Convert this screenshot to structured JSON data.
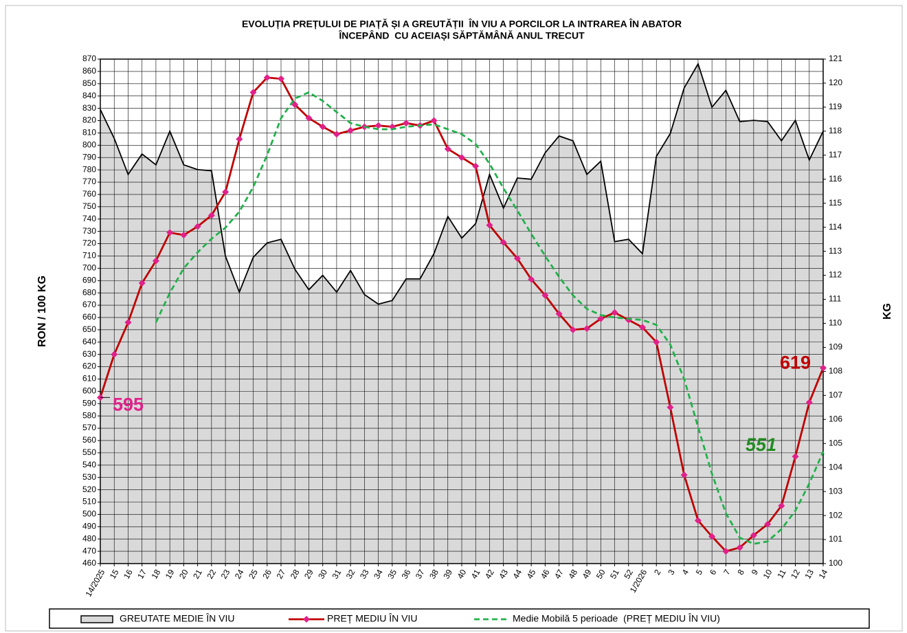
{
  "chart_data": {
    "type": "line",
    "title": "EVOLUȚIA PREȚULUI DE PIAȚĂ ȘI A GREUTĂȚII  ÎN VIU A PORCILOR LA INTRAREA ÎN ABATOR",
    "subtitle": "ÎNCEPÂND  CU ACEIAȘI SĂPTĂMÂNĂ ANUL TRECUT",
    "y_label": "RON / 100 KG",
    "y2_label": "KG",
    "categories": [
      "14/2025",
      "15",
      "16",
      "17",
      "18",
      "19",
      "20",
      "21",
      "22",
      "23",
      "24",
      "25",
      "26",
      "27",
      "28",
      "29",
      "30",
      "31",
      "32",
      "33",
      "34",
      "35",
      "36",
      "37",
      "38",
      "39",
      "40",
      "41",
      "42",
      "43",
      "44",
      "45",
      "46",
      "47",
      "48",
      "49",
      "50",
      "51",
      "52",
      "1/2026",
      "2",
      "3",
      "4",
      "5",
      "6",
      "7",
      "8",
      "9",
      "10",
      "11",
      "12",
      "13",
      "14"
    ],
    "series": [
      {
        "name": "GREUTATE MEDIE ÎN VIU",
        "type": "area",
        "axis": "y2",
        "color": "#000000",
        "fill": "#d9d9d9",
        "values": [
          118.9,
          117.7,
          116.2,
          117.05,
          116.6,
          118.0,
          116.6,
          116.4,
          116.35,
          112.8,
          111.3,
          112.75,
          113.35,
          113.5,
          112.25,
          111.4,
          112.0,
          111.3,
          112.2,
          111.2,
          110.8,
          110.95,
          111.85,
          111.85,
          112.9,
          114.45,
          113.55,
          114.15,
          116.2,
          114.8,
          116.05,
          116.0,
          117.1,
          117.8,
          117.6,
          116.2,
          116.75,
          113.4,
          113.5,
          112.9,
          116.95,
          117.9,
          119.8,
          120.8,
          119.0,
          119.7,
          118.4,
          118.45,
          118.4,
          117.6,
          118.45,
          116.8,
          118.0
        ]
      },
      {
        "name": "PREȚ MEDIU ÎN VIU",
        "type": "line",
        "color": "#c00000",
        "marker_color": "#e0218a",
        "values": [
          595,
          630,
          656,
          688,
          706,
          729,
          727,
          734,
          743,
          762,
          805,
          843,
          855,
          854,
          833,
          822,
          815,
          809,
          812,
          815,
          816,
          815,
          818,
          816,
          820,
          797,
          790,
          783,
          735,
          721,
          708,
          691,
          678,
          663,
          650,
          651,
          659,
          664,
          658,
          652,
          640,
          587,
          532,
          495,
          482,
          470,
          473,
          483,
          492,
          507,
          547,
          591,
          619
        ],
        "value_labels": [
          "595",
          null,
          null,
          null,
          null,
          null,
          null,
          null,
          null,
          null,
          null,
          null,
          null,
          null,
          null,
          null,
          null,
          null,
          null,
          null,
          null,
          null,
          null,
          null,
          null,
          null,
          null,
          null,
          null,
          null,
          null,
          null,
          null,
          null,
          null,
          null,
          null,
          null,
          null,
          null,
          null,
          null,
          null,
          null,
          null,
          null,
          null,
          null,
          null,
          null,
          null,
          null,
          "619"
        ]
      },
      {
        "name": "Medie Mobilă 5 perioade  (PREȚ MEDIU ÎN VIU)",
        "type": "dashed",
        "color": "#22b14c",
        "values": [
          null,
          null,
          null,
          null,
          656,
          680,
          700,
          713,
          724,
          733,
          746,
          766,
          792,
          822,
          838,
          843,
          836,
          827,
          818,
          815,
          813,
          813,
          815,
          816,
          817,
          813,
          809,
          801,
          785,
          765,
          747,
          728,
          710,
          693,
          678,
          667,
          662,
          660,
          659,
          658,
          654,
          638,
          610,
          571,
          533,
          501,
          481,
          476,
          478,
          488,
          503,
          525,
          551
        ],
        "value_labels": [
          null,
          null,
          null,
          null,
          null,
          null,
          null,
          null,
          null,
          null,
          null,
          null,
          null,
          null,
          null,
          null,
          null,
          null,
          null,
          null,
          null,
          null,
          null,
          null,
          null,
          null,
          null,
          null,
          null,
          null,
          null,
          null,
          null,
          null,
          null,
          null,
          null,
          null,
          null,
          null,
          null,
          null,
          null,
          null,
          null,
          null,
          null,
          null,
          null,
          null,
          null,
          null,
          "551"
        ]
      }
    ],
    "ylim": [
      460,
      870
    ],
    "yticks": [
      460,
      470,
      480,
      490,
      500,
      510,
      520,
      530,
      540,
      550,
      560,
      570,
      580,
      590,
      600,
      610,
      620,
      630,
      640,
      650,
      660,
      670,
      680,
      690,
      700,
      710,
      720,
      730,
      740,
      750,
      760,
      770,
      780,
      790,
      800,
      810,
      820,
      830,
      840,
      850,
      860,
      870
    ],
    "y2lim": [
      100,
      121
    ],
    "y2ticks": [
      100,
      101,
      102,
      103,
      104,
      105,
      106,
      107,
      108,
      109,
      110,
      111,
      112,
      113,
      114,
      115,
      116,
      117,
      118,
      119,
      120,
      121
    ],
    "grid": true,
    "legend": "bottom"
  }
}
